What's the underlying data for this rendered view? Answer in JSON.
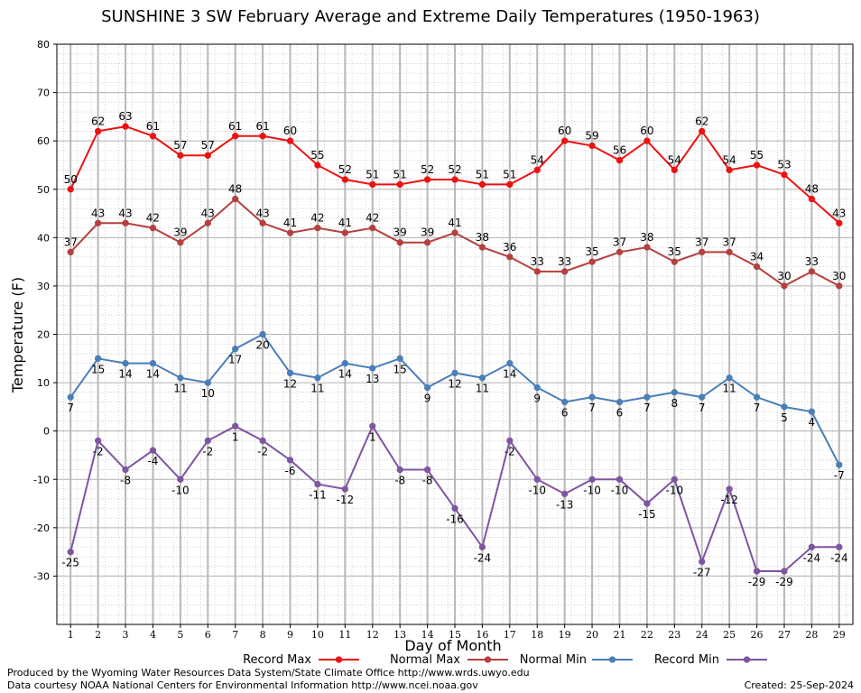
{
  "chart_data": {
    "type": "line",
    "title": "SUNSHINE 3 SW February Average and Extreme Daily Temperatures (1950-1963)",
    "xlabel": "Day of Month",
    "ylabel": "Temperature (F)",
    "ylim": [
      -40,
      80
    ],
    "yticks": [
      -30,
      -20,
      -10,
      0,
      10,
      20,
      30,
      40,
      50,
      60,
      70,
      80
    ],
    "x": [
      1,
      2,
      3,
      4,
      5,
      6,
      7,
      8,
      9,
      10,
      11,
      12,
      13,
      14,
      15,
      16,
      17,
      18,
      19,
      20,
      21,
      22,
      23,
      24,
      25,
      26,
      27,
      28,
      29
    ],
    "grid": true,
    "legend_position": "bottom",
    "series": [
      {
        "name": "Record Max",
        "color": "#ee1111",
        "label_pos": "above",
        "values": [
          50,
          62,
          63,
          61,
          57,
          57,
          61,
          61,
          60,
          55,
          52,
          51,
          51,
          52,
          52,
          51,
          51,
          54,
          60,
          59,
          56,
          60,
          54,
          62,
          54,
          55,
          53,
          48,
          43
        ]
      },
      {
        "name": "Normal Max",
        "color": "#b4403f",
        "label_pos": "above",
        "values": [
          37,
          43,
          43,
          42,
          39,
          43,
          48,
          43,
          41,
          42,
          41,
          42,
          39,
          39,
          41,
          38,
          36,
          33,
          33,
          35,
          37,
          38,
          35,
          37,
          37,
          34,
          30,
          33,
          30
        ]
      },
      {
        "name": "Normal Min",
        "color": "#4a7eb8",
        "label_pos": "below",
        "values": [
          7,
          15,
          14,
          14,
          11,
          10,
          17,
          20,
          12,
          11,
          14,
          13,
          15,
          9,
          12,
          11,
          14,
          9,
          6,
          7,
          6,
          7,
          8,
          7,
          11,
          7,
          5,
          4,
          -7
        ]
      },
      {
        "name": "Record Min",
        "color": "#7e55a0",
        "label_pos": "below",
        "values": [
          -25,
          -2,
          -8,
          -4,
          -10,
          -2,
          1,
          -2,
          -6,
          -11,
          -12,
          1,
          -8,
          -8,
          -16,
          -24,
          -2,
          -10,
          -13,
          -10,
          -10,
          -15,
          -10,
          -27,
          -12,
          -29,
          -29,
          -24,
          -24
        ]
      }
    ]
  },
  "footer": {
    "produced_by": "Produced by the Wyoming Water Resources Data System/State Climate Office http://www.wrds.uwyo.edu",
    "data_courtesy": "Data courtesy NOAA National Centers for Environmental Information http://www.ncei.noaa.gov",
    "created": "Created:  25-Sep-2024"
  }
}
